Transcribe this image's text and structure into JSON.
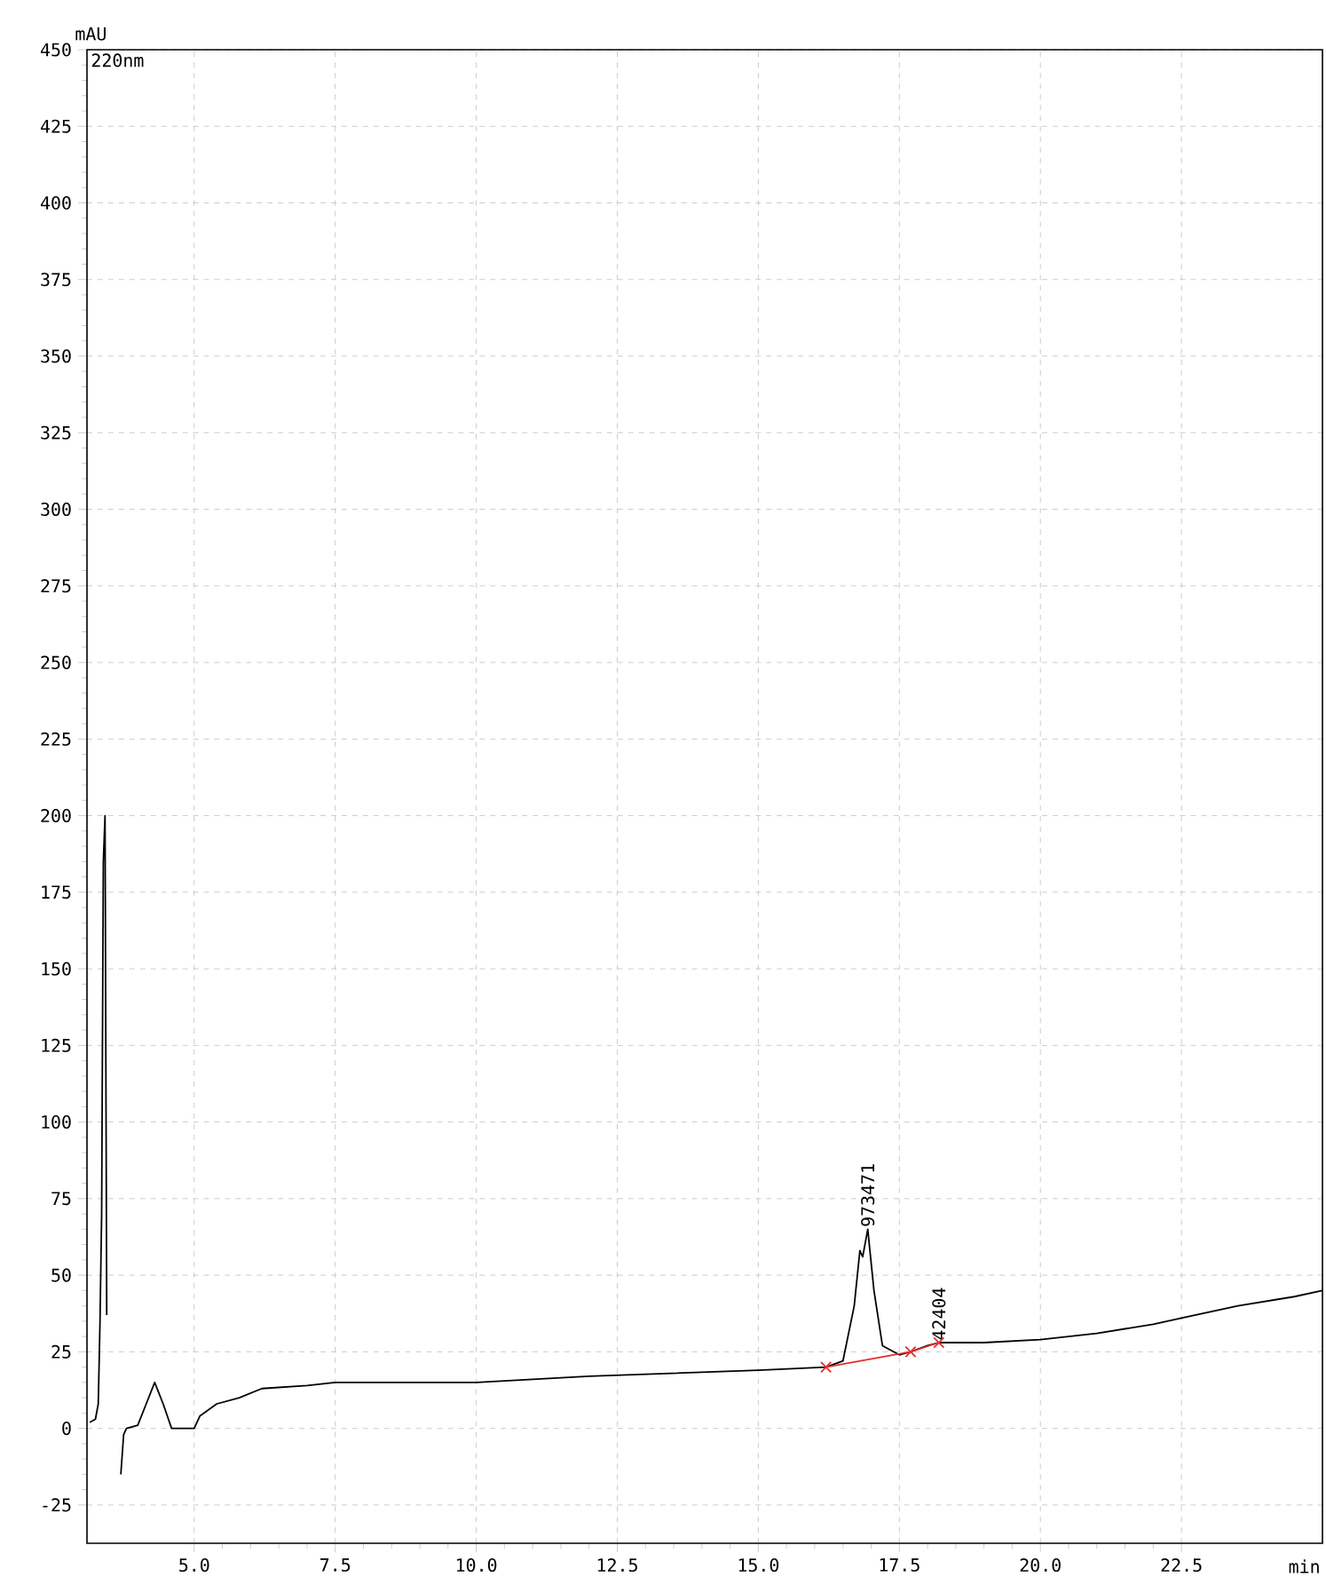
{
  "chart_data": {
    "type": "line",
    "xlabel": "min",
    "ylabel": "mAU",
    "annotations": [
      "220nm",
      {
        "text": "973471",
        "x": 16.94,
        "y": 65
      },
      {
        "text": "42404",
        "x": 18.2,
        "y": 28
      }
    ],
    "xlim": [
      3.1,
      25
    ],
    "ylim": [
      -37.5,
      450
    ],
    "xticks": [
      {
        "value": 5,
        "label": "5.0"
      },
      {
        "value": 7.5,
        "label": "7.5"
      },
      {
        "value": 10,
        "label": "10.0"
      },
      {
        "value": 12.5,
        "label": "12.5"
      },
      {
        "value": 15,
        "label": "15.0"
      },
      {
        "value": 17.5,
        "label": "17.5"
      },
      {
        "value": 20,
        "label": "20.0"
      },
      {
        "value": 22.5,
        "label": "22.5"
      }
    ],
    "yticks": [
      -25,
      0,
      25,
      50,
      75,
      100,
      125,
      150,
      175,
      200,
      225,
      250,
      275,
      300,
      325,
      350,
      375,
      400,
      425,
      450
    ],
    "grid": true,
    "series": [
      {
        "color": "#000000",
        "x": [
          3.15,
          3.25,
          3.3,
          3.33,
          3.36,
          3.39,
          3.42,
          3.45,
          3.47,
          3.66,
          3.7,
          3.75,
          3.8,
          4.0,
          4.15,
          4.3,
          4.45,
          4.6,
          5.0,
          5.1,
          5.4,
          5.8,
          6.2,
          7.0,
          7.5,
          9.0,
          10.0,
          12.0,
          15.0,
          16.2,
          16.5,
          16.7,
          16.8,
          16.85,
          16.94,
          17.05,
          17.2,
          17.5,
          17.7,
          18.0,
          18.2,
          19.0,
          20.0,
          21.0,
          22.0,
          22.5,
          23.5,
          24.5,
          25.0
        ],
        "values": [
          2,
          3,
          8,
          34,
          70,
          185,
          200,
          37,
          null,
          null,
          -15,
          -2,
          0,
          1,
          8,
          15,
          8,
          0,
          0,
          4,
          8,
          10,
          13,
          14,
          15,
          15,
          15,
          17,
          19,
          20,
          22,
          40,
          58,
          56,
          65,
          45,
          27,
          24,
          25,
          27,
          28,
          28,
          29,
          31,
          34,
          36,
          40,
          43,
          45
        ]
      },
      {
        "color": "#e03030",
        "marker": "cross",
        "x": [
          16.2,
          17.7,
          18.2
        ],
        "values": [
          20,
          25,
          28
        ]
      }
    ]
  }
}
